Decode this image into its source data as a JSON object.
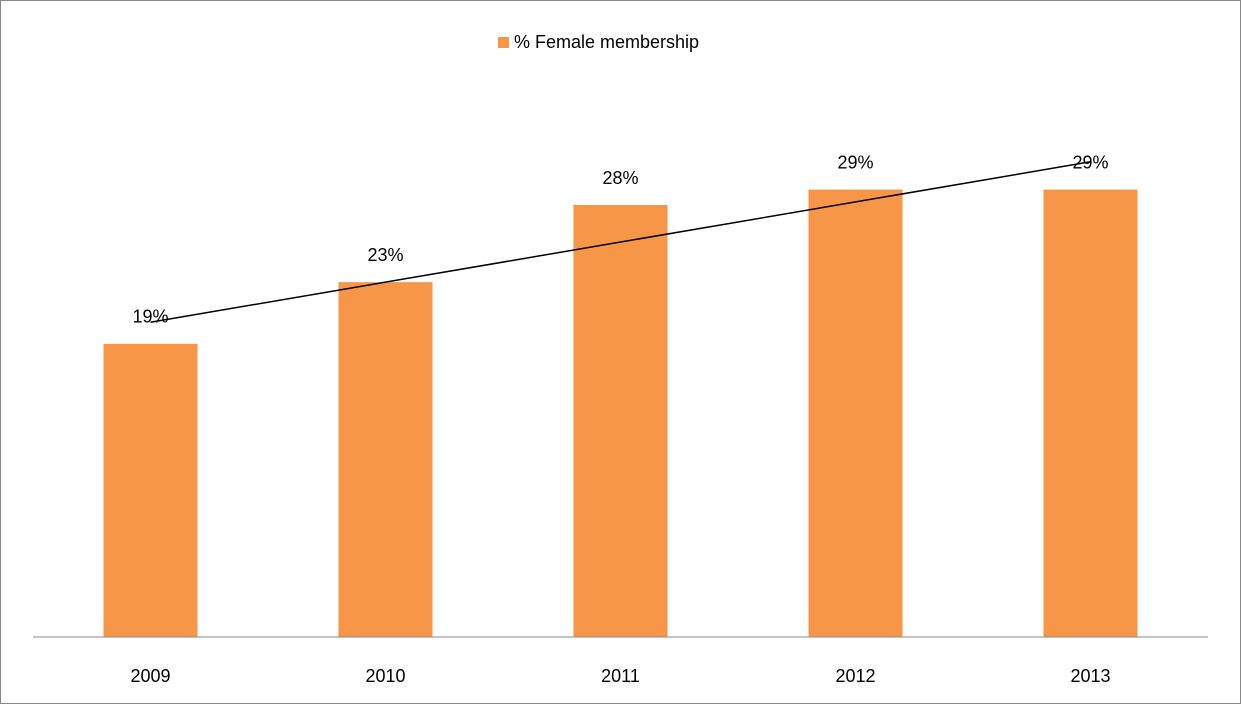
{
  "chart_data": {
    "type": "bar",
    "categories": [
      "2009",
      "2010",
      "2011",
      "2012",
      "2013"
    ],
    "series": [
      {
        "name": "% Female membership",
        "color": "#f79646",
        "values": [
          19,
          23,
          28,
          29,
          29
        ],
        "value_labels": [
          "19%",
          "23%",
          "28%",
          "29%",
          "29%"
        ]
      }
    ],
    "ylim": [
      0,
      35
    ],
    "trendline": "linear",
    "legend": "top"
  }
}
